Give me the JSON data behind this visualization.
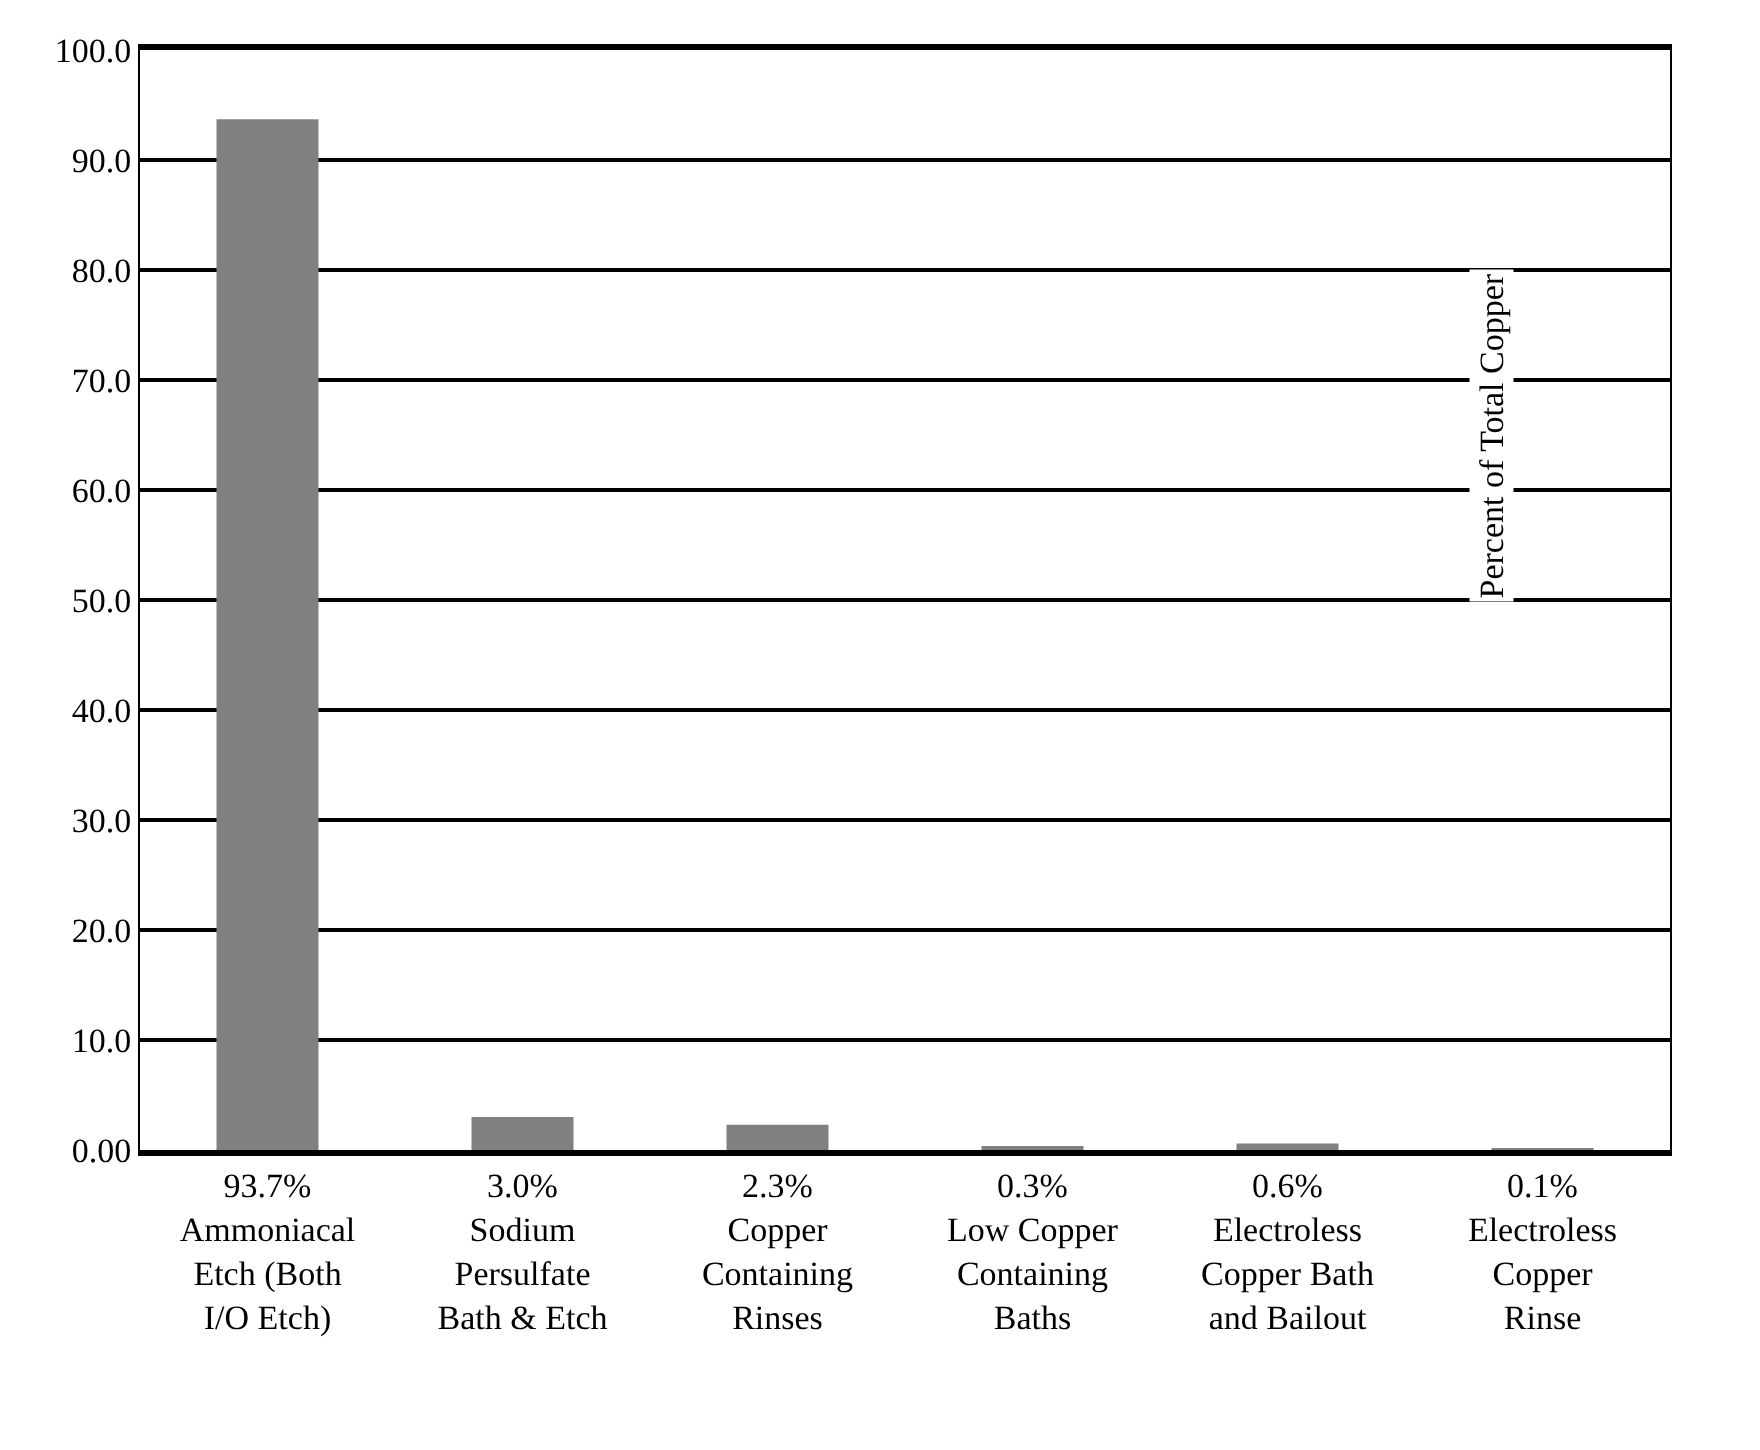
{
  "chart_data": {
    "type": "bar",
    "categories": [
      "Ammoniacal Etch (Both I/O Etch)",
      "Sodium Persulfate Bath & Etch",
      "Copper Containing Rinses",
      "Low Copper Containing Baths",
      "Electroless Copper Bath and Bailout",
      "Electroless Copper Rinse"
    ],
    "values": [
      93.7,
      3.0,
      2.3,
      0.3,
      0.6,
      0.1
    ],
    "value_labels": [
      "93.7%",
      "3.0%",
      "2.3%",
      "0.3%",
      "0.6%",
      "0.1%"
    ],
    "color": "#808080",
    "ylabel": "Percent of Total Copper",
    "ylim": [
      0,
      100
    ],
    "yticks": [
      {
        "value": 0,
        "label": "0.00"
      },
      {
        "value": 10,
        "label": "10.0"
      },
      {
        "value": 20,
        "label": "20.0"
      },
      {
        "value": 30,
        "label": "30.0"
      },
      {
        "value": 40,
        "label": "40.0"
      },
      {
        "value": 50,
        "label": "50.0"
      },
      {
        "value": 60,
        "label": "60.0"
      },
      {
        "value": 70,
        "label": "70.0"
      },
      {
        "value": 80,
        "label": "80.0"
      },
      {
        "value": 90,
        "label": "90.0"
      },
      {
        "value": 100,
        "label": "100.0"
      }
    ],
    "grid": "y"
  }
}
